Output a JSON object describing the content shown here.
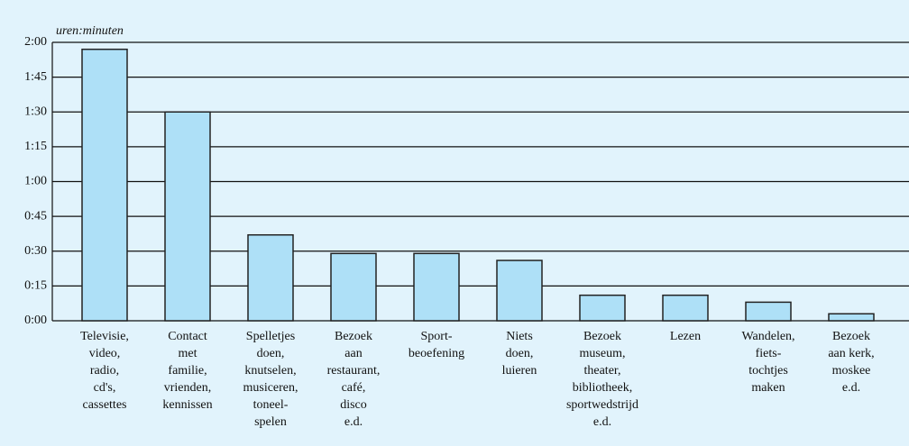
{
  "chart_data": {
    "type": "bar",
    "y_axis_label": "uren:minuten",
    "categories": [
      "Televisie,\nvideo,\nradio,\ncd's,\ncassettes",
      "Contact\nmet\nfamilie,\nvrienden,\nkennissen",
      "Spelletjes\ndoen,\nknutselen,\nmusiceren,\ntoneel-\nspelen",
      "Bezoek\naan\nrestaurant,\ncafé,\ndisco\ne.d.",
      "Sport-\nbeoefening",
      "Niets\ndoen,\nluieren",
      "Bezoek\nmuseum,\ntheater,\nbibliotheek,\nsportwedstrijd\ne.d.",
      "Lezen",
      "Wandelen,\nfiets-\ntochtjes\nmaken",
      "Bezoek\naan kerk,\nmoskee\ne.d."
    ],
    "values": [
      117,
      90,
      37,
      29,
      29,
      26,
      11,
      11,
      8,
      3
    ],
    "color": "#aee0f7",
    "ylim": [
      0,
      120
    ],
    "yticks": [
      {
        "value": 0,
        "label": "0:00"
      },
      {
        "value": 15,
        "label": "0:15"
      },
      {
        "value": 30,
        "label": "0:30"
      },
      {
        "value": 45,
        "label": "0:45"
      },
      {
        "value": 60,
        "label": "1:00"
      },
      {
        "value": 75,
        "label": "1:15"
      },
      {
        "value": 90,
        "label": "1:30"
      },
      {
        "value": 105,
        "label": "1:45"
      },
      {
        "value": 120,
        "label": "2:00"
      }
    ],
    "grid": true
  }
}
